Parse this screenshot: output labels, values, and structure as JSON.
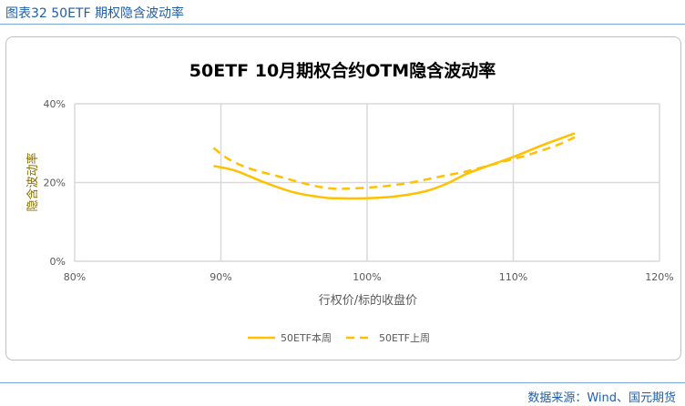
{
  "figure_label": "图表32  50ETF 期权隐含波动率",
  "source": "数据来源：Wind、国元期货",
  "colors": {
    "series": "#FFC000",
    "grid": "#d9d9d9",
    "header": "#1f5fa8"
  },
  "chart_data": {
    "type": "line",
    "title": "50ETF  10月期权合约OTM隐含波动率",
    "xlabel": "行权价/标的收盘价",
    "ylabel": "隐含波动率",
    "xlim": [
      80,
      120
    ],
    "ylim": [
      0,
      40
    ],
    "xticks": [
      "80%",
      "90%",
      "100%",
      "110%",
      "120%"
    ],
    "yticks": [
      "0%",
      "20%",
      "40%"
    ],
    "grid": true,
    "legend": "bottom",
    "series": [
      {
        "name": "50ETF本周",
        "style": "solid",
        "x": [
          89.5,
          91,
          93,
          95,
          97,
          98,
          100,
          102,
          104,
          105.5,
          107,
          110,
          112,
          114.2
        ],
        "y": [
          24.2,
          23,
          20,
          17.5,
          16.2,
          16,
          16,
          16.5,
          17.8,
          19.8,
          22.5,
          26.5,
          29.5,
          32.5
        ]
      },
      {
        "name": "50ETF上周",
        "style": "dashed",
        "x": [
          89.5,
          90.5,
          92,
          94,
          96,
          97.5,
          99,
          101,
          103,
          105,
          107,
          109,
          111,
          113,
          114.2
        ],
        "y": [
          28.8,
          26,
          23.5,
          21.5,
          19.5,
          18.5,
          18.5,
          19,
          20,
          21.5,
          23,
          25,
          27,
          29.5,
          31.5
        ]
      }
    ]
  }
}
